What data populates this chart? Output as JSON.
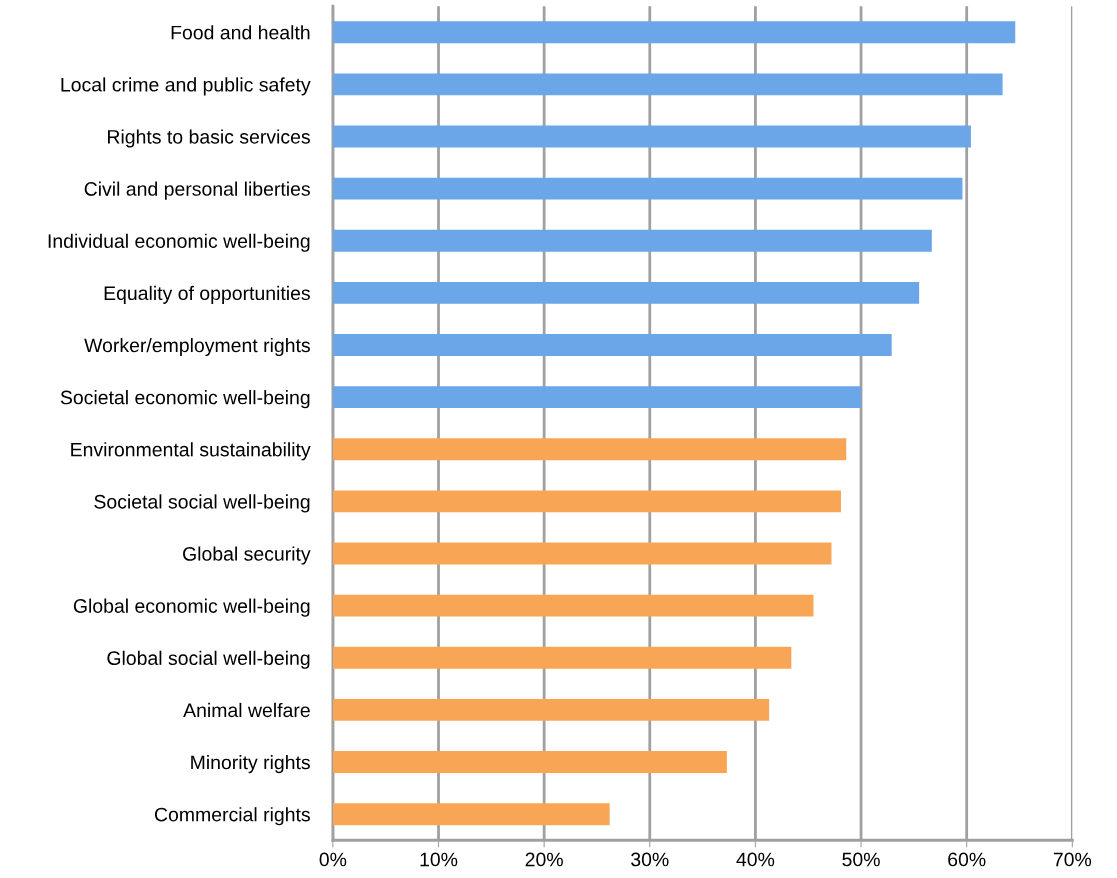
{
  "chart_data": {
    "type": "bar",
    "orientation": "horizontal",
    "categories": [
      "Food and health",
      "Local crime and public safety",
      "Rights to basic services",
      "Civil and personal liberties",
      "Individual economic well-being",
      "Equality of opportunities",
      "Worker/employment rights",
      "Societal economic well-being",
      "Environmental sustainability",
      "Societal social well-being",
      "Global security",
      "Global economic well-being",
      "Global social well-being",
      "Animal welfare",
      "Minority rights",
      "Commercial rights"
    ],
    "values": [
      64.6,
      63.4,
      60.4,
      59.6,
      56.7,
      55.5,
      52.9,
      50.0,
      48.6,
      48.1,
      47.2,
      45.5,
      43.4,
      41.3,
      37.3,
      26.2
    ],
    "colors": [
      "#6aa6e8",
      "#6aa6e8",
      "#6aa6e8",
      "#6aa6e8",
      "#6aa6e8",
      "#6aa6e8",
      "#6aa6e8",
      "#6aa6e8",
      "#f8a655",
      "#f8a655",
      "#f8a655",
      "#f8a655",
      "#f8a655",
      "#f8a655",
      "#f8a655",
      "#f8a655"
    ],
    "xlim": [
      0,
      70
    ],
    "xticks": [
      {
        "value": 0,
        "label": "0%"
      },
      {
        "value": 10,
        "label": "10%"
      },
      {
        "value": 20,
        "label": "20%"
      },
      {
        "value": 30,
        "label": "30%"
      },
      {
        "value": 40,
        "label": "40%"
      },
      {
        "value": 50,
        "label": "50%"
      },
      {
        "value": 60,
        "label": "60%"
      },
      {
        "value": 70,
        "label": "70%"
      }
    ],
    "grid": "x",
    "legend": false
  }
}
